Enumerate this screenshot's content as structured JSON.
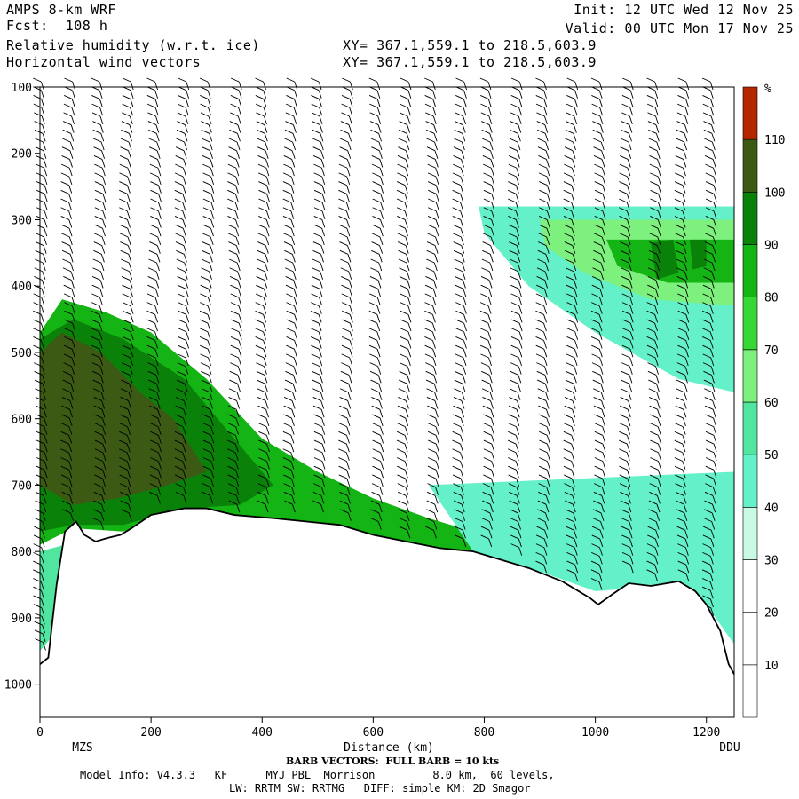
{
  "header": {
    "model": "AMPS 8-km WRF",
    "fcst": "Fcst:  108 h",
    "field1": "Relative humidity (w.r.t. ice)",
    "field2": "Horizontal wind vectors",
    "init": "Init: 12 UTC Wed 12 Nov 25",
    "valid": "Valid: 00 UTC Mon 17 Nov 25",
    "xy1": "XY= 367.1,559.1 to 218.5,603.9",
    "xy2": "XY= 367.1,559.1 to 218.5,603.9"
  },
  "footer": {
    "barb_note": "BARB VECTORS:  FULL BARB = 10 kts",
    "line1": "Model Info: V4.3.3   KF      MYJ PBL  Morrison         8.0 km,  60 levels,",
    "line2": "LW: RRTM SW: RRTMG   DIFF: simple KM: 2D Smagor"
  },
  "chart_data": {
    "type": "heatmap",
    "xlabel": "Distance (km)",
    "x_endpoints": {
      "left": "MZS",
      "right": "DDU"
    },
    "xlim": [
      0,
      1250
    ],
    "ylim": [
      1050,
      100
    ],
    "x_ticks": [
      0,
      200,
      400,
      600,
      800,
      1000,
      1200
    ],
    "y_ticks": [
      100,
      200,
      300,
      400,
      500,
      600,
      700,
      800,
      900,
      1000
    ],
    "colorbar": {
      "unit": "%",
      "levels": [
        10,
        20,
        30,
        40,
        50,
        60,
        70,
        80,
        90,
        100,
        110
      ],
      "colors": [
        "#ffffff",
        "#ffffff",
        "#ffffff",
        "#c8fae6",
        "#64f0c8",
        "#50e6a0",
        "#7ef07e",
        "#37d737",
        "#14b414",
        "#0a820a",
        "#3c5a14",
        "#b42800"
      ]
    },
    "terrain_profile": [
      [
        0,
        970
      ],
      [
        15,
        960
      ],
      [
        30,
        850
      ],
      [
        45,
        770
      ],
      [
        65,
        755
      ],
      [
        80,
        775
      ],
      [
        100,
        785
      ],
      [
        120,
        780
      ],
      [
        145,
        775
      ],
      [
        165,
        765
      ],
      [
        200,
        745
      ],
      [
        260,
        735
      ],
      [
        300,
        735
      ],
      [
        350,
        745
      ],
      [
        420,
        750
      ],
      [
        480,
        755
      ],
      [
        540,
        760
      ],
      [
        600,
        775
      ],
      [
        660,
        785
      ],
      [
        720,
        795
      ],
      [
        780,
        800
      ],
      [
        840,
        815
      ],
      [
        880,
        825
      ],
      [
        940,
        845
      ],
      [
        990,
        870
      ],
      [
        1005,
        880
      ],
      [
        1030,
        865
      ],
      [
        1060,
        848
      ],
      [
        1100,
        852
      ],
      [
        1150,
        845
      ],
      [
        1180,
        860
      ],
      [
        1200,
        880
      ],
      [
        1225,
        920
      ],
      [
        1240,
        970
      ],
      [
        1250,
        985
      ]
    ],
    "moist_regions": [
      {
        "level": 80,
        "polygon": [
          [
            0,
            470
          ],
          [
            40,
            420
          ],
          [
            120,
            440
          ],
          [
            200,
            470
          ],
          [
            300,
            540
          ],
          [
            400,
            630
          ],
          [
            500,
            680
          ],
          [
            600,
            720
          ],
          [
            700,
            750
          ],
          [
            780,
            770
          ],
          [
            860,
            800
          ],
          [
            860,
            830
          ],
          [
            700,
            810
          ],
          [
            560,
            780
          ],
          [
            400,
            760
          ],
          [
            250,
            745
          ],
          [
            150,
            770
          ],
          [
            60,
            765
          ],
          [
            0,
            790
          ]
        ]
      },
      {
        "level": 90,
        "polygon": [
          [
            0,
            480
          ],
          [
            60,
            450
          ],
          [
            150,
            480
          ],
          [
            260,
            540
          ],
          [
            340,
            620
          ],
          [
            420,
            700
          ],
          [
            360,
            730
          ],
          [
            260,
            735
          ],
          [
            150,
            760
          ],
          [
            60,
            760
          ],
          [
            0,
            770
          ]
        ]
      },
      {
        "level": 100,
        "polygon": [
          [
            0,
            500
          ],
          [
            40,
            470
          ],
          [
            110,
            500
          ],
          [
            180,
            560
          ],
          [
            240,
            600
          ],
          [
            300,
            680
          ],
          [
            230,
            700
          ],
          [
            140,
            720
          ],
          [
            60,
            730
          ],
          [
            0,
            700
          ]
        ]
      },
      {
        "level": 40,
        "polygon": [
          [
            790,
            280
          ],
          [
            1250,
            280
          ],
          [
            1250,
            560
          ],
          [
            1150,
            540
          ],
          [
            1000,
            470
          ],
          [
            880,
            400
          ],
          [
            800,
            320
          ]
        ]
      },
      {
        "level": 60,
        "polygon": [
          [
            900,
            300
          ],
          [
            1250,
            300
          ],
          [
            1250,
            430
          ],
          [
            1100,
            420
          ],
          [
            980,
            380
          ],
          [
            910,
            340
          ]
        ]
      },
      {
        "level": 80,
        "polygon": [
          [
            1020,
            330
          ],
          [
            1250,
            330
          ],
          [
            1250,
            395
          ],
          [
            1130,
            395
          ],
          [
            1040,
            370
          ]
        ]
      },
      {
        "level": 90,
        "polygon": [
          [
            1100,
            335
          ],
          [
            1140,
            330
          ],
          [
            1150,
            380
          ],
          [
            1110,
            390
          ]
        ]
      },
      {
        "level": 90,
        "polygon": [
          [
            1170,
            330
          ],
          [
            1200,
            330
          ],
          [
            1200,
            370
          ],
          [
            1175,
            375
          ]
        ]
      },
      {
        "level": 40,
        "polygon": [
          [
            700,
            700
          ],
          [
            1250,
            680
          ],
          [
            1250,
            870
          ],
          [
            1150,
            850
          ],
          [
            1000,
            860
          ],
          [
            900,
            830
          ],
          [
            780,
            800
          ]
        ]
      },
      {
        "level": 50,
        "polygon": [
          [
            0,
            800
          ],
          [
            45,
            790
          ],
          [
            45,
            850
          ],
          [
            30,
            920
          ],
          [
            0,
            950
          ]
        ]
      },
      {
        "level": 40,
        "polygon": [
          [
            1150,
            720
          ],
          [
            1250,
            720
          ],
          [
            1250,
            940
          ],
          [
            1200,
            880
          ],
          [
            1150,
            860
          ]
        ]
      }
    ],
    "barb_columns_km": [
      10,
      60,
      115,
      165,
      215,
      265,
      310,
      360,
      410,
      460,
      510,
      560,
      615,
      665,
      715,
      765,
      815,
      865,
      915,
      965,
      1015,
      1065,
      1115,
      1165,
      1215
    ]
  }
}
